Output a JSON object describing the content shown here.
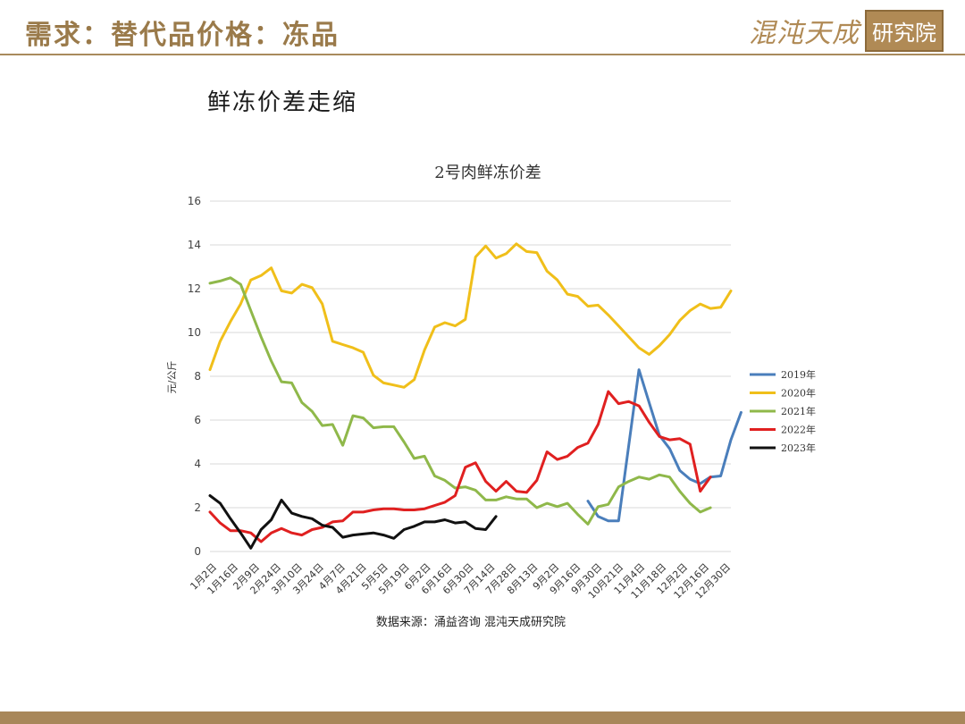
{
  "header": {
    "title": "需求：替代品价格：冻品",
    "logo_text": "混沌天成",
    "logo_box": "研究院"
  },
  "slide_subtitle": "鲜冻价差走缩",
  "source": "数据来源：涌益咨询 混沌天成研究院",
  "colors": {
    "accent": "#a8875a",
    "grid": "#d9d9d9"
  },
  "chart_data": {
    "type": "line",
    "title": "2号肉鲜冻价差",
    "ylabel": "元/公斤",
    "ylim": [
      0,
      16
    ],
    "yticks": [
      0,
      2,
      4,
      6,
      8,
      10,
      12,
      14,
      16
    ],
    "grid": true,
    "legend_position": "right",
    "x_tick_labels": [
      "1月2日",
      "1月16日",
      "2月9日",
      "2月24日",
      "3月10日",
      "3月24日",
      "4月7日",
      "4月21日",
      "5月5日",
      "5月19日",
      "6月2日",
      "6月16日",
      "6月30日",
      "7月14日",
      "7月28日",
      "8月13日",
      "9月2日",
      "9月16日",
      "9月30日",
      "10月21日",
      "11月4日",
      "11月18日",
      "12月2日",
      "12月16日",
      "12月30日"
    ],
    "series": [
      {
        "name": "2019年",
        "color": "#4a7ebb",
        "values": [
          [
            37,
            2.3
          ],
          [
            38,
            1.6
          ],
          [
            39,
            1.4
          ],
          [
            40,
            1.4
          ],
          [
            42,
            8.3
          ],
          [
            43,
            6.8
          ],
          [
            44,
            5.3
          ],
          [
            45,
            4.7
          ],
          [
            46,
            3.7
          ],
          [
            47,
            3.3
          ],
          [
            48,
            3.1
          ],
          [
            49,
            3.4
          ],
          [
            50,
            3.45
          ],
          [
            51,
            5.1
          ],
          [
            52,
            6.35
          ]
        ]
      },
      {
        "name": "2020年",
        "color": "#f0bf1a",
        "values": [
          [
            0,
            8.3
          ],
          [
            1,
            9.6
          ],
          [
            2,
            10.5
          ],
          [
            3,
            11.3
          ],
          [
            4,
            12.4
          ],
          [
            5,
            12.6
          ],
          [
            6,
            12.95
          ],
          [
            7,
            11.9
          ],
          [
            8,
            11.8
          ],
          [
            9,
            12.2
          ],
          [
            10,
            12.05
          ],
          [
            11,
            11.3
          ],
          [
            12,
            9.6
          ],
          [
            13,
            9.45
          ],
          [
            14,
            9.3
          ],
          [
            15,
            9.1
          ],
          [
            16,
            8.05
          ],
          [
            17,
            7.7
          ],
          [
            18,
            7.6
          ],
          [
            19,
            7.5
          ],
          [
            20,
            7.85
          ],
          [
            21,
            9.2
          ],
          [
            22,
            10.25
          ],
          [
            23,
            10.45
          ],
          [
            24,
            10.3
          ],
          [
            25,
            10.6
          ],
          [
            26,
            13.45
          ],
          [
            27,
            13.95
          ],
          [
            28,
            13.4
          ],
          [
            29,
            13.6
          ],
          [
            30,
            14.05
          ],
          [
            31,
            13.7
          ],
          [
            32,
            13.65
          ],
          [
            33,
            12.8
          ],
          [
            34,
            12.4
          ],
          [
            35,
            11.75
          ],
          [
            36,
            11.65
          ],
          [
            37,
            11.2
          ],
          [
            38,
            11.25
          ],
          [
            39,
            10.8
          ],
          [
            40,
            10.3
          ],
          [
            41,
            9.8
          ],
          [
            42,
            9.3
          ],
          [
            43,
            9.0
          ],
          [
            44,
            9.4
          ],
          [
            45,
            9.9
          ],
          [
            46,
            10.55
          ],
          [
            47,
            11.0
          ],
          [
            48,
            11.3
          ],
          [
            49,
            11.1
          ],
          [
            50,
            11.15
          ],
          [
            51,
            11.9
          ]
        ]
      },
      {
        "name": "2021年",
        "color": "#8fb84a",
        "values": [
          [
            0,
            12.25
          ],
          [
            1,
            12.35
          ],
          [
            2,
            12.5
          ],
          [
            3,
            12.2
          ],
          [
            4,
            11.0
          ],
          [
            5,
            9.8
          ],
          [
            6,
            8.7
          ],
          [
            7,
            7.75
          ],
          [
            8,
            7.7
          ],
          [
            9,
            6.8
          ],
          [
            10,
            6.4
          ],
          [
            11,
            5.75
          ],
          [
            12,
            5.8
          ],
          [
            13,
            4.85
          ],
          [
            14,
            6.2
          ],
          [
            15,
            6.1
          ],
          [
            16,
            5.65
          ],
          [
            17,
            5.7
          ],
          [
            18,
            5.7
          ],
          [
            19,
            5.0
          ],
          [
            20,
            4.25
          ],
          [
            21,
            4.35
          ],
          [
            22,
            3.45
          ],
          [
            23,
            3.25
          ],
          [
            24,
            2.9
          ],
          [
            25,
            2.95
          ],
          [
            26,
            2.8
          ],
          [
            27,
            2.35
          ],
          [
            28,
            2.35
          ],
          [
            29,
            2.5
          ],
          [
            30,
            2.4
          ],
          [
            31,
            2.4
          ],
          [
            32,
            2.0
          ],
          [
            33,
            2.2
          ],
          [
            34,
            2.05
          ],
          [
            35,
            2.2
          ],
          [
            36,
            1.7
          ],
          [
            37,
            1.25
          ],
          [
            38,
            2.05
          ],
          [
            39,
            2.15
          ],
          [
            40,
            2.95
          ],
          [
            41,
            3.2
          ],
          [
            42,
            3.4
          ],
          [
            43,
            3.3
          ],
          [
            44,
            3.5
          ],
          [
            45,
            3.4
          ],
          [
            46,
            2.75
          ],
          [
            47,
            2.2
          ],
          [
            48,
            1.8
          ],
          [
            49,
            2.0
          ]
        ]
      },
      {
        "name": "2022年",
        "color": "#e02020",
        "values": [
          [
            0,
            1.8
          ],
          [
            1,
            1.3
          ],
          [
            2,
            0.95
          ],
          [
            3,
            0.95
          ],
          [
            4,
            0.85
          ],
          [
            5,
            0.45
          ],
          [
            6,
            0.85
          ],
          [
            7,
            1.05
          ],
          [
            8,
            0.85
          ],
          [
            9,
            0.75
          ],
          [
            10,
            1.0
          ],
          [
            11,
            1.1
          ],
          [
            12,
            1.35
          ],
          [
            13,
            1.4
          ],
          [
            14,
            1.8
          ],
          [
            15,
            1.8
          ],
          [
            16,
            1.9
          ],
          [
            17,
            1.95
          ],
          [
            18,
            1.95
          ],
          [
            19,
            1.9
          ],
          [
            20,
            1.9
          ],
          [
            21,
            1.95
          ],
          [
            22,
            2.1
          ],
          [
            23,
            2.25
          ],
          [
            24,
            2.55
          ],
          [
            25,
            3.85
          ],
          [
            26,
            4.05
          ],
          [
            27,
            3.2
          ],
          [
            28,
            2.75
          ],
          [
            29,
            3.2
          ],
          [
            30,
            2.75
          ],
          [
            31,
            2.7
          ],
          [
            32,
            3.25
          ],
          [
            33,
            4.55
          ],
          [
            34,
            4.2
          ],
          [
            35,
            4.35
          ],
          [
            36,
            4.75
          ],
          [
            37,
            4.95
          ],
          [
            38,
            5.8
          ],
          [
            39,
            7.3
          ],
          [
            40,
            6.75
          ],
          [
            41,
            6.85
          ],
          [
            42,
            6.65
          ],
          [
            43,
            5.9
          ],
          [
            44,
            5.25
          ],
          [
            45,
            5.1
          ],
          [
            46,
            5.15
          ],
          [
            47,
            4.9
          ],
          [
            48,
            2.75
          ],
          [
            49,
            3.4
          ]
        ]
      },
      {
        "name": "2023年",
        "color": "#111111",
        "values": [
          [
            0,
            2.55
          ],
          [
            1,
            2.2
          ],
          [
            2,
            1.5
          ],
          [
            3,
            0.85
          ],
          [
            4,
            0.15
          ],
          [
            5,
            1.0
          ],
          [
            6,
            1.45
          ],
          [
            7,
            2.35
          ],
          [
            8,
            1.75
          ],
          [
            9,
            1.6
          ],
          [
            10,
            1.5
          ],
          [
            11,
            1.2
          ],
          [
            12,
            1.1
          ],
          [
            13,
            0.65
          ],
          [
            14,
            0.75
          ],
          [
            15,
            0.8
          ],
          [
            16,
            0.85
          ],
          [
            17,
            0.75
          ],
          [
            18,
            0.6
          ],
          [
            19,
            1.0
          ],
          [
            20,
            1.15
          ],
          [
            21,
            1.35
          ],
          [
            22,
            1.35
          ],
          [
            23,
            1.45
          ],
          [
            24,
            1.3
          ],
          [
            25,
            1.35
          ],
          [
            26,
            1.05
          ],
          [
            27,
            1.0
          ],
          [
            28,
            1.6
          ]
        ]
      }
    ]
  }
}
